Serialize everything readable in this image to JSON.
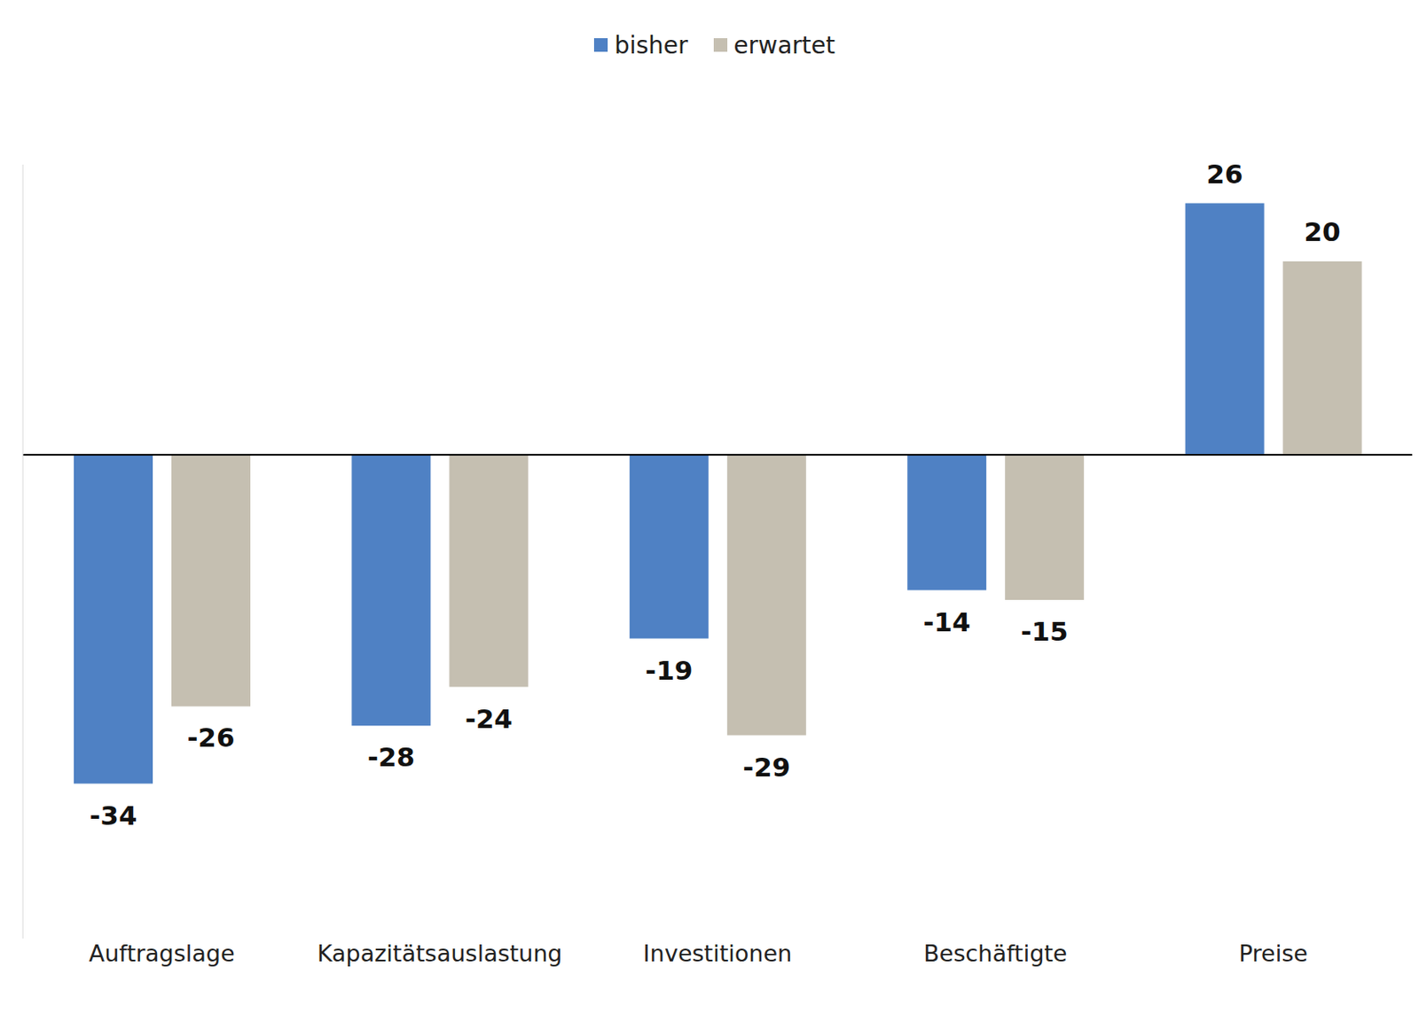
{
  "chart_data": {
    "type": "bar",
    "categories": [
      "Auftragslage",
      "Kapazitätsauslastung",
      "Investitionen",
      "Beschäftigte",
      "Preise"
    ],
    "series": [
      {
        "name": "bisher",
        "color": "#4f81c4",
        "values": [
          -34,
          -28,
          -19,
          -14,
          26
        ]
      },
      {
        "name": "erwartet",
        "color": "#c5bfb1",
        "values": [
          -26,
          -24,
          -29,
          -15,
          20
        ]
      }
    ],
    "ylim": [
      -50,
      30
    ],
    "yticks": [
      0
    ],
    "grid": false,
    "legend": "top",
    "data_labels": true,
    "tick_labels": "x"
  }
}
